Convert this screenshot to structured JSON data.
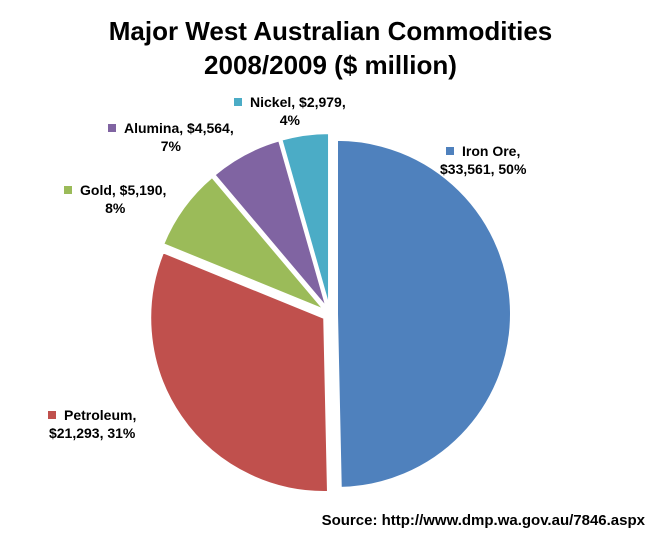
{
  "chart_data": {
    "type": "pie",
    "title_line1": "Major West Australian Commodities",
    "title_line2": "2008/2009 ($ million)",
    "source": "Source: http://www.dmp.wa.gov.au/7846.aspx",
    "slices": [
      {
        "name": "Iron Ore,",
        "detail": "$33,561, 50%",
        "value": 33561,
        "percent": 50,
        "color": "#4F81BD"
      },
      {
        "name": "Petroleum,",
        "detail": "$21,293, 31%",
        "value": 21293,
        "percent": 31,
        "color": "#C0504D"
      },
      {
        "name": "Gold, $5,190,",
        "detail": "8%",
        "value": 5190,
        "percent": 8,
        "color": "#9BBB59"
      },
      {
        "name": "Alumina, $4,564,",
        "detail": "7%",
        "value": 4564,
        "percent": 7,
        "color": "#8064A2"
      },
      {
        "name": "Nickel, $2,979,",
        "detail": "4%",
        "value": 2979,
        "percent": 4,
        "color": "#4BACC6"
      }
    ]
  }
}
